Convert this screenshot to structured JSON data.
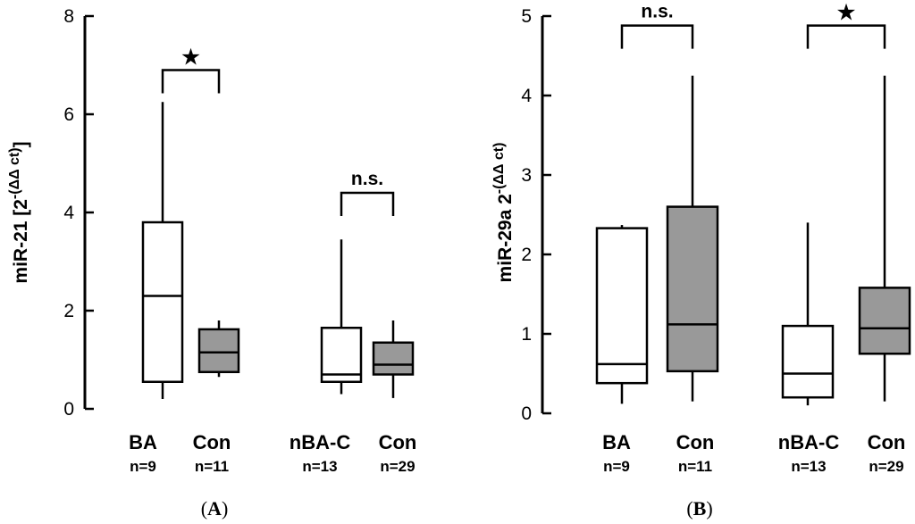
{
  "colors": {
    "box_white": "#ffffff",
    "box_gray": "#999999",
    "stroke": "#000000"
  },
  "chart_data": [
    {
      "type": "box",
      "panel_label": "(A)",
      "panel_letter": "A",
      "ylabel": "miR-21 [2⁻⁽ᐞᐞ ᶜᵗ⁾]",
      "ylabel_parts": {
        "main": "miR-21 [2",
        "sup": "-(ΔΔ ct)",
        "tail": "]"
      },
      "ylim": [
        0,
        8
      ],
      "yticks": [
        "0",
        "2",
        "4",
        "6",
        "8"
      ],
      "boxes": [
        {
          "group": "BA",
          "n": "n=9",
          "fill": "white",
          "whisker_low": 0.2,
          "q1": 0.55,
          "median": 2.3,
          "q3": 3.8,
          "whisker_high": 6.25
        },
        {
          "group": "Con",
          "n": "n=11",
          "fill": "gray",
          "whisker_low": 0.65,
          "q1": 0.75,
          "median": 1.15,
          "q3": 1.62,
          "whisker_high": 1.8
        },
        {
          "group": "nBA-C",
          "n": "n=13",
          "fill": "white",
          "whisker_low": 0.3,
          "q1": 0.55,
          "median": 0.7,
          "q3": 1.65,
          "whisker_high": 3.45
        },
        {
          "group": "Con",
          "n": "n=29",
          "fill": "gray",
          "whisker_low": 0.22,
          "q1": 0.7,
          "median": 0.9,
          "q3": 1.35,
          "whisker_high": 1.8
        }
      ],
      "comparisons": [
        {
          "from": 0,
          "to": 1,
          "y": 6.9,
          "label": "★"
        },
        {
          "from": 2,
          "to": 3,
          "y": 4.4,
          "label": "n.s."
        }
      ]
    },
    {
      "type": "box",
      "panel_label": "(B)",
      "panel_letter": "B",
      "ylabel": "miR-29a 2⁻⁽ᐞᐞ ᶜᵗ⁾",
      "ylabel_parts": {
        "main": "miR-29a 2",
        "sup": "-(ΔΔ ct)",
        "tail": ""
      },
      "ylim": [
        0,
        5
      ],
      "yticks": [
        "0",
        "1",
        "2",
        "3",
        "4",
        "5"
      ],
      "boxes": [
        {
          "group": "BA",
          "n": "n=9",
          "fill": "white",
          "whisker_low": 0.12,
          "q1": 0.38,
          "median": 0.62,
          "q3": 2.33,
          "whisker_high": 2.37
        },
        {
          "group": "Con",
          "n": "n=11",
          "fill": "gray",
          "whisker_low": 0.15,
          "q1": 0.53,
          "median": 1.12,
          "q3": 2.6,
          "whisker_high": 4.25
        },
        {
          "group": "nBA-C",
          "n": "n=13",
          "fill": "white",
          "whisker_low": 0.1,
          "q1": 0.2,
          "median": 0.5,
          "q3": 1.1,
          "whisker_high": 2.4
        },
        {
          "group": "Con",
          "n": "n=29",
          "fill": "gray",
          "whisker_low": 0.15,
          "q1": 0.75,
          "median": 1.07,
          "q3": 1.58,
          "whisker_high": 4.25
        }
      ],
      "comparisons": [
        {
          "from": 0,
          "to": 1,
          "y": 4.88,
          "label": "n.s."
        },
        {
          "from": 2,
          "to": 3,
          "y": 4.88,
          "label": "★"
        }
      ]
    }
  ]
}
